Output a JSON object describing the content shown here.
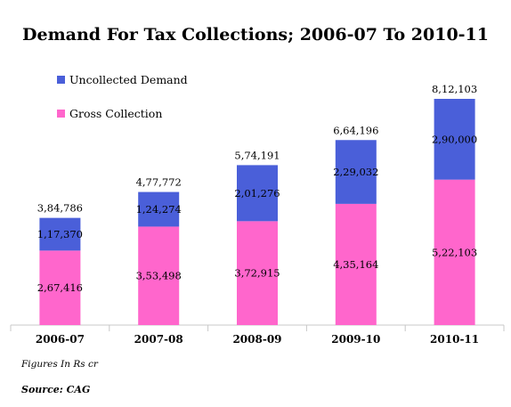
{
  "chart_data": {
    "type": "bar",
    "stacked": true,
    "title": "Demand For Tax Collections; 2006-07 To 2010-11",
    "categories": [
      "2006-07",
      "2007-08",
      "2008-09",
      "2009-10",
      "2010-11"
    ],
    "series": [
      {
        "name": "Gross Collection",
        "color": "#ff66cc",
        "values": [
          267416,
          353498,
          372915,
          435164,
          522103
        ],
        "labels": [
          "2,67,416",
          "3,53,498",
          "3,72,915",
          "4,35,164",
          "5,22,103"
        ]
      },
      {
        "name": "Uncollected Demand",
        "color": "#4a5fd9",
        "values": [
          117370,
          124274,
          201276,
          229032,
          290000
        ],
        "labels": [
          "1,17,370",
          "1,24,274",
          "2,01,276",
          "2,29,032",
          "2,90,000"
        ]
      }
    ],
    "totals": [
      384786,
      477772,
      574191,
      664196,
      812103
    ],
    "total_labels": [
      "3,84,786",
      "4,77,772",
      "5,74,191",
      "6,64,196",
      "8,12,103"
    ],
    "ylim": [
      0,
      900000
    ],
    "legend_position": "top-left",
    "grid": false
  },
  "note": "Figures In Rs cr",
  "source": "Source: CAG"
}
